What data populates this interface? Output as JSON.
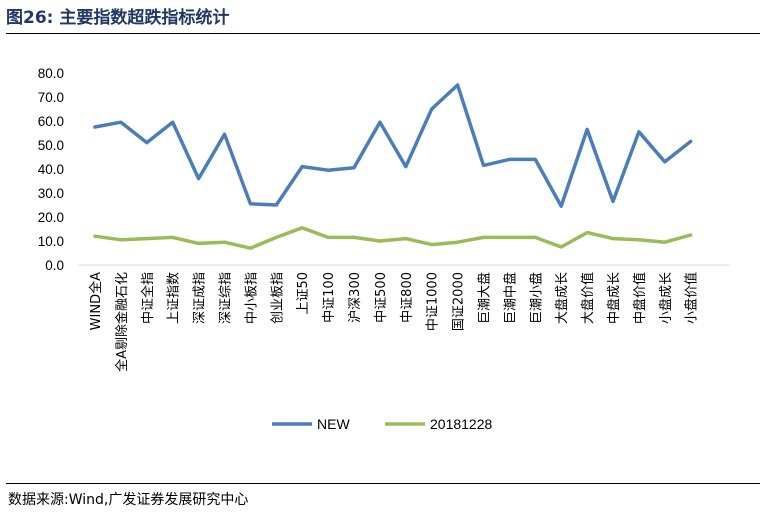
{
  "figure": {
    "title": "图26:  主要指数超跌指标统计",
    "source": "数据来源:Wind,广发证券发展研究中心"
  },
  "chart_data": {
    "type": "line",
    "title": "",
    "xlabel": "",
    "ylabel": "",
    "ylim": [
      0,
      80
    ],
    "yticks": [
      "0.0",
      "10.0",
      "20.0",
      "30.0",
      "40.0",
      "50.0",
      "60.0",
      "70.0",
      "80.0"
    ],
    "grid": false,
    "legend_position": "bottom",
    "categories": [
      "WIND全A",
      "全A剔除金融石化",
      "中证全指",
      "上证指数",
      "深证成指",
      "深证综指",
      "中小板指",
      "创业板指",
      "上证50",
      "中证100",
      "沪深300",
      "中证500",
      "中证800",
      "中证1000",
      "国证2000",
      "巨潮大盘",
      "巨潮中盘",
      "巨潮小盘",
      "大盘成长",
      "大盘价值",
      "中盘成长",
      "中盘价值",
      "小盘成长",
      "小盘价值"
    ],
    "series": [
      {
        "name": "NEW",
        "color": "#4a7ebb",
        "values": [
          57.5,
          59.5,
          51,
          59.5,
          36,
          54.5,
          25.5,
          25,
          41,
          39.5,
          40.5,
          59.5,
          41,
          65,
          75,
          41.5,
          44,
          44,
          24.5,
          56.5,
          26.5,
          55.5,
          43,
          51.5
        ]
      },
      {
        "name": "20181228",
        "color": "#9bbb59",
        "values": [
          12,
          10.5,
          11,
          11.5,
          9,
          9.5,
          7,
          11.5,
          15.5,
          11.5,
          11.5,
          10,
          11,
          8.5,
          9.5,
          11.5,
          11.5,
          11.5,
          7.5,
          13.5,
          11,
          10.5,
          9.5,
          12.5
        ]
      }
    ]
  }
}
